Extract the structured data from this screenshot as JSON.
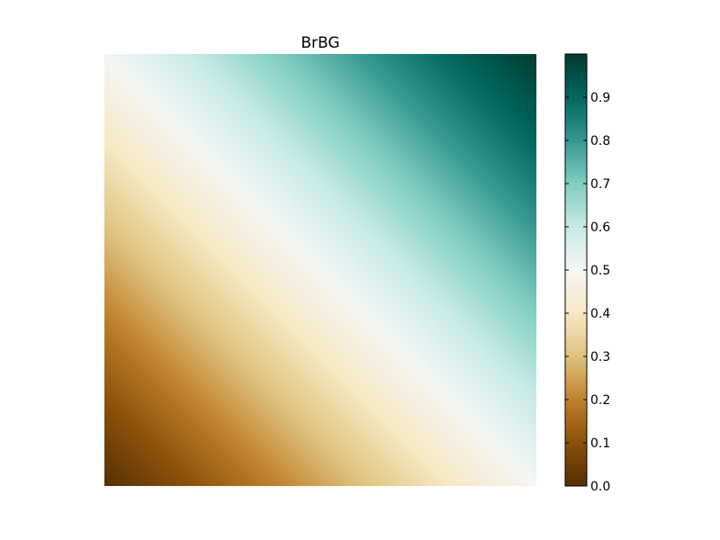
{
  "chart_data": {
    "type": "heatmap",
    "title": "BrBG",
    "colormap": "BrBG",
    "gradient_direction": "diagonal: low at bottom-left, high at top-right",
    "value_range": [
      0,
      1
    ],
    "colorbar": {
      "position": "right",
      "ticks": [
        0.0,
        0.1,
        0.2,
        0.3,
        0.4,
        0.5,
        0.6,
        0.7,
        0.8,
        0.9
      ],
      "tick_labels": [
        "0.0",
        "0.1",
        "0.2",
        "0.3",
        "0.4",
        "0.5",
        "0.6",
        "0.7",
        "0.8",
        "0.9"
      ]
    },
    "axes_visible": false,
    "grid": false,
    "colors": [
      "#543005",
      "#8c510a",
      "#bf812d",
      "#dfc27d",
      "#f6e8c3",
      "#f5f5f5",
      "#c7eae5",
      "#80cdc1",
      "#35978f",
      "#01665e",
      "#003c30"
    ]
  }
}
